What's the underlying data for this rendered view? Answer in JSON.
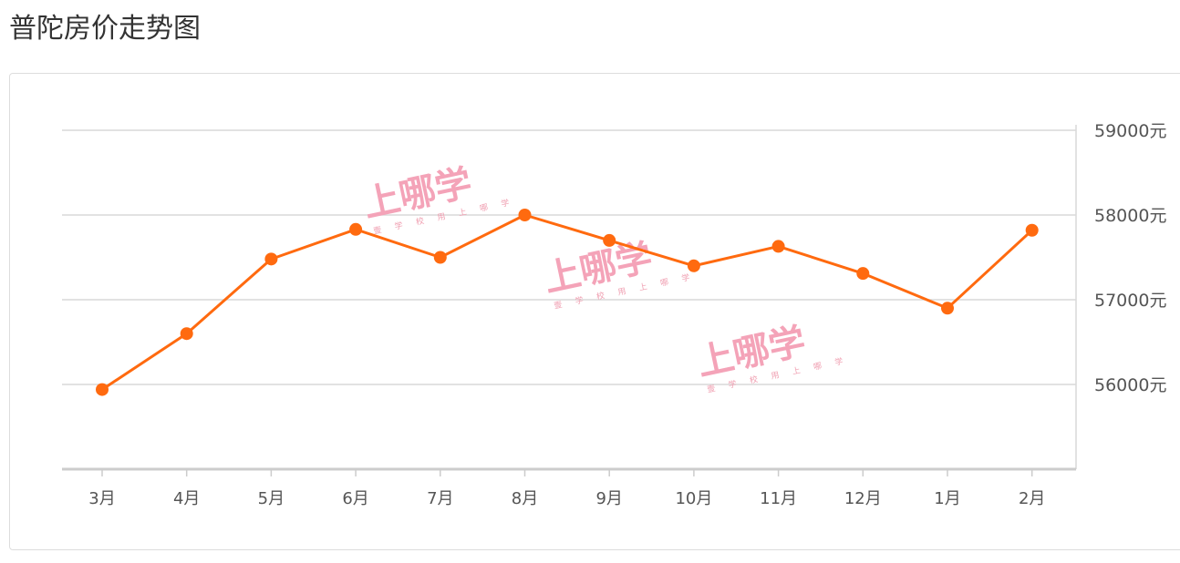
{
  "page": {
    "title": "普陀房价走势图"
  },
  "watermark": {
    "main": "上哪学",
    "sub": "壹 学 校   用 上 哪 学"
  },
  "colors": {
    "line": "#ff6a0f",
    "grid": "#d9d9d9",
    "axis": "#cccccc",
    "text": "#555555"
  },
  "chart_data": {
    "type": "line",
    "categories": [
      "3月",
      "4月",
      "5月",
      "6月",
      "7月",
      "8月",
      "9月",
      "10月",
      "11月",
      "12月",
      "1月",
      "2月"
    ],
    "series": [
      {
        "values": [
          55940,
          56600,
          57480,
          57830,
          57500,
          58000,
          57700,
          57400,
          57630,
          57310,
          56900,
          57820
        ]
      }
    ],
    "y_ticks": [
      {
        "value": 56000,
        "label": "56000元"
      },
      {
        "value": 57000,
        "label": "57000元"
      },
      {
        "value": 58000,
        "label": "58000元"
      },
      {
        "value": 59000,
        "label": "59000元"
      }
    ],
    "ylim": [
      55000,
      59000
    ],
    "y_axis_side": "right",
    "grid": true,
    "legend": "none"
  }
}
